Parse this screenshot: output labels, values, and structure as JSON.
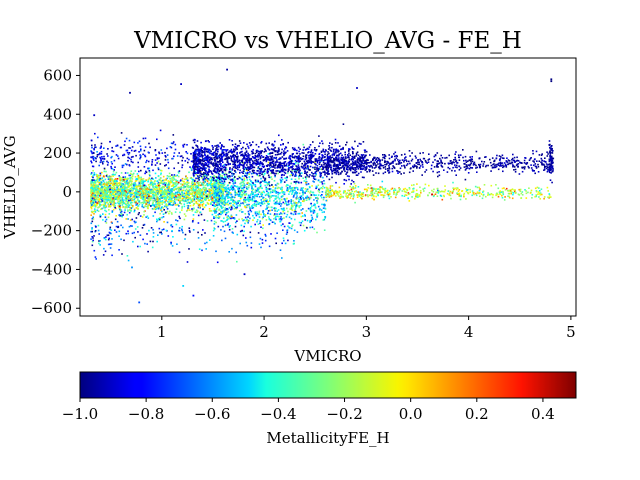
{
  "chart_data": {
    "type": "scatter",
    "title": "VMICRO vs VHELIO_AVG - FE_H",
    "xlabel": "VMICRO",
    "ylabel": "VHELIO_AVG",
    "xlim": [
      0.2,
      5.05
    ],
    "ylim": [
      -640,
      690
    ],
    "xticks": [
      1,
      2,
      3,
      4,
      5
    ],
    "yticks": [
      -600,
      -400,
      -200,
      0,
      200,
      400,
      600
    ],
    "colorbar": {
      "label": "MetallicityFE_H",
      "colormap": "jet",
      "range": [
        -1.0,
        0.5
      ],
      "ticks": [
        -1.0,
        -0.8,
        -0.6,
        -0.4,
        -0.2,
        0.0,
        0.2,
        0.4
      ],
      "tick_labels": [
        "−1.0",
        "−0.8",
        "−0.6",
        "−0.4",
        "−0.2",
        "0.0",
        "0.2",
        "0.4"
      ]
    },
    "grid": false,
    "point_groups": [
      {
        "x_range": [
          0.3,
          1.6
        ],
        "y_mean": 0,
        "y_sd": 45,
        "c_mean": -0.25,
        "c_sd": 0.2,
        "n": 2600
      },
      {
        "x_range": [
          1.5,
          2.6
        ],
        "y_mean": -20,
        "y_sd": 70,
        "c_mean": -0.45,
        "c_sd": 0.18,
        "n": 1200
      },
      {
        "x_range": [
          1.3,
          3.0
        ],
        "y_mean": 160,
        "y_sd": 45,
        "c_mean": -0.92,
        "c_sd": 0.06,
        "n": 1600
      },
      {
        "x_range": [
          2.6,
          4.8
        ],
        "y_mean": 150,
        "y_sd": 25,
        "c_mean": -0.95,
        "c_sd": 0.04,
        "n": 700
      },
      {
        "x_range": [
          2.6,
          4.8
        ],
        "y_mean": 0,
        "y_sd": 18,
        "c_mean": -0.15,
        "c_sd": 0.15,
        "n": 500
      },
      {
        "x_range": [
          0.3,
          1.6
        ],
        "y_mean": 180,
        "y_sd": 50,
        "c_mean": -0.85,
        "c_sd": 0.1,
        "n": 300
      },
      {
        "x_range": [
          0.3,
          2.5
        ],
        "y_mean": -180,
        "y_sd": 70,
        "c_mean": -0.7,
        "c_sd": 0.2,
        "n": 350
      },
      {
        "x_range": [
          4.78,
          4.82
        ],
        "y_mean": 170,
        "y_sd": 40,
        "c_mean": -0.95,
        "c_sd": 0.03,
        "n": 80
      }
    ],
    "outliers": [
      {
        "x": 0.33,
        "y": 400,
        "c": -0.9
      },
      {
        "x": 0.68,
        "y": 515,
        "c": -0.95
      },
      {
        "x": 1.18,
        "y": 560,
        "c": -0.9
      },
      {
        "x": 1.63,
        "y": 635,
        "c": -0.95
      },
      {
        "x": 2.9,
        "y": 540,
        "c": -0.9
      },
      {
        "x": 4.8,
        "y": 585,
        "c": -1.0
      },
      {
        "x": 4.8,
        "y": 575,
        "c": -1.0
      },
      {
        "x": 0.77,
        "y": -565,
        "c": -0.7
      },
      {
        "x": 1.3,
        "y": -530,
        "c": -0.8
      },
      {
        "x": 1.2,
        "y": -480,
        "c": -0.5
      },
      {
        "x": 0.7,
        "y": -385,
        "c": -0.6
      },
      {
        "x": 1.8,
        "y": -420,
        "c": -0.9
      }
    ]
  }
}
